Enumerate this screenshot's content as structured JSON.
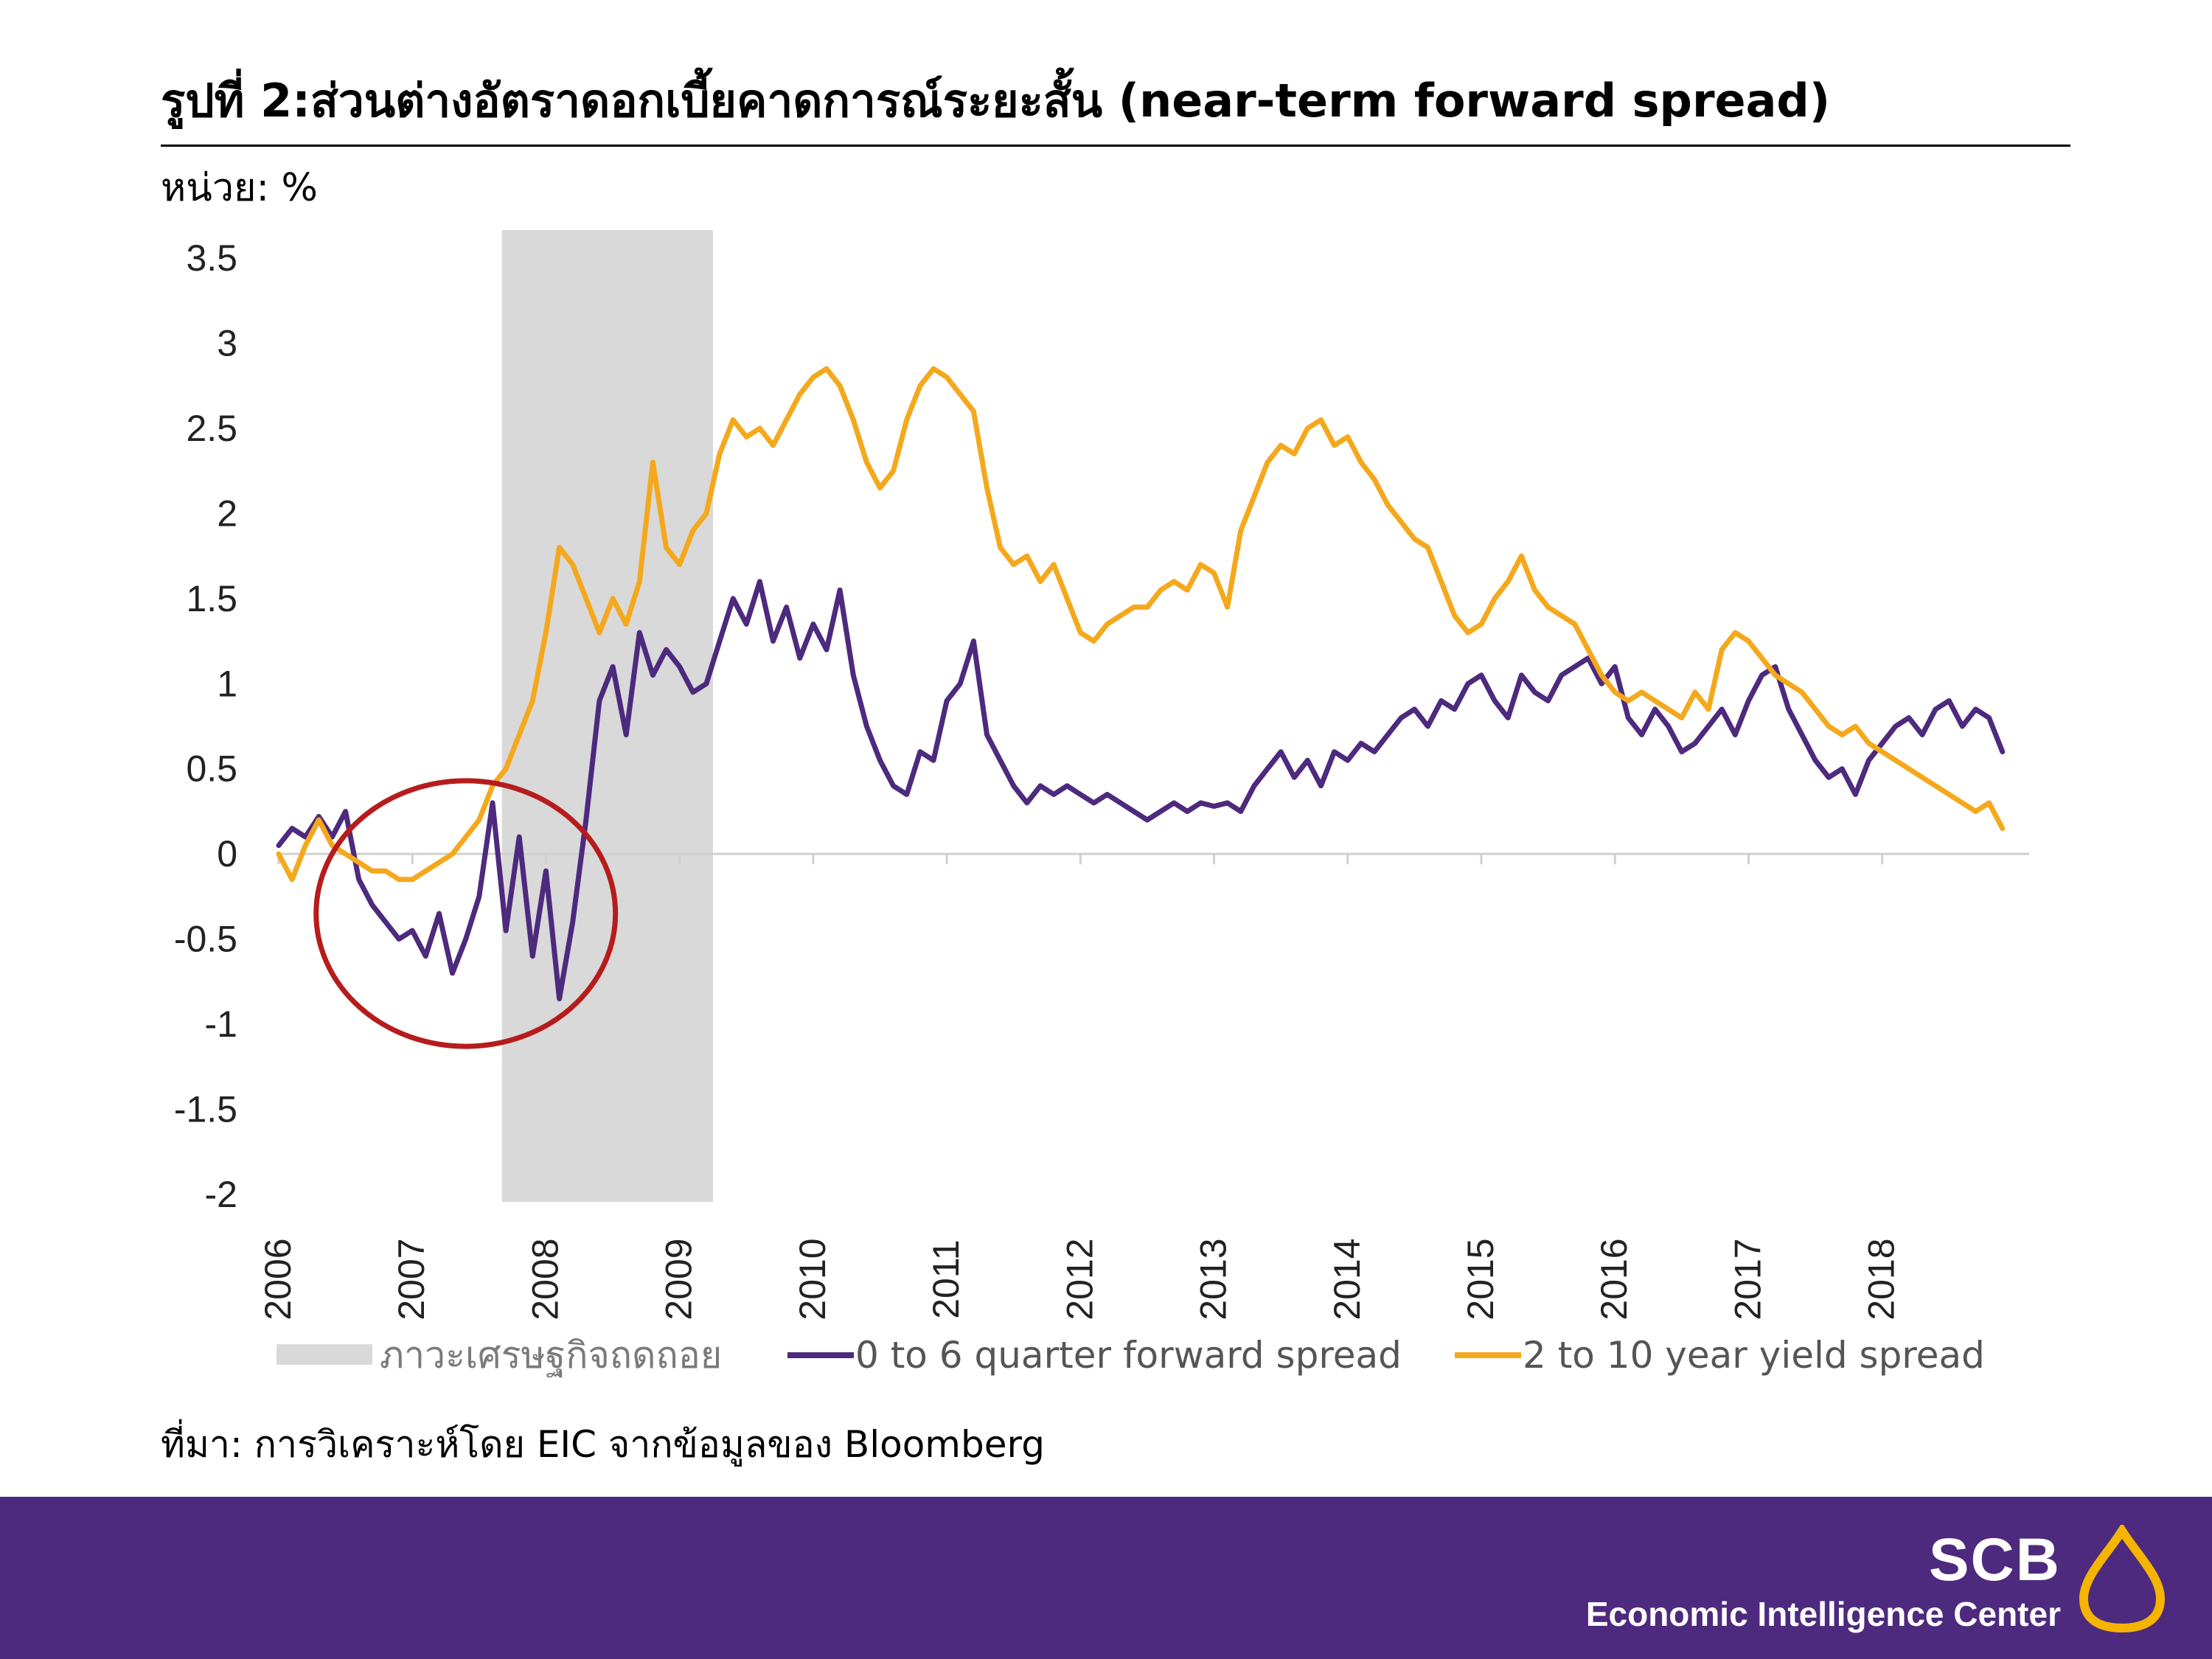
{
  "header": {
    "title": "รูปที่ 2:ส่วนต่างอัตราดอกเบี้ยคาดการณ์ระยะสั้น (near-term forward spread)",
    "unit": "หน่วย: %"
  },
  "footer": {
    "source": "ที่มา: การวิเคราะห์โดย EIC จากข้อมูลของ Bloomberg",
    "brand_name": "SCB",
    "brand_sub": "Economic Intelligence Center",
    "logo_icon": "scb-logo-icon"
  },
  "colors": {
    "forward": "#4d2a7d",
    "yield": "#f5a81c",
    "recession": "#d9d9d9",
    "circle": "#b71c1c",
    "footer": "#4d2a7d"
  },
  "chart_data": {
    "type": "line",
    "title": "รูปที่ 2:ส่วนต่างอัตราดอกเบี้ยคาดการณ์ระยะสั้น (near-term forward spread)",
    "ylabel": "หน่วย: %",
    "xlabel": "",
    "xlim": [
      2006,
      2019.1
    ],
    "ylim": [
      -2,
      3.5
    ],
    "yticks": [
      "3.5",
      "3",
      "2.5",
      "2",
      "1.5",
      "1",
      "0.5",
      "0",
      "-0.5",
      "-1",
      "-1.5",
      "-2"
    ],
    "xticks": [
      "2006",
      "2007",
      "2008",
      "2009",
      "2010",
      "2011",
      "2012",
      "2013",
      "2014",
      "2015",
      "2016",
      "2017",
      "2018"
    ],
    "recession": {
      "label": "ภาวะเศรษฐกิจถดถอย",
      "start": 2007.67,
      "end": 2009.25
    },
    "annotation": {
      "type": "circle",
      "cx": 2007.4,
      "cy": -0.35,
      "rx": 1.12,
      "ry": 0.78
    },
    "series": [
      {
        "name": "0 to 6 quarter forward spread",
        "x": [
          2006.0,
          2006.1,
          2006.2,
          2006.3,
          2006.4,
          2006.5,
          2006.6,
          2006.7,
          2006.8,
          2006.9,
          2007.0,
          2007.1,
          2007.2,
          2007.3,
          2007.4,
          2007.5,
          2007.6,
          2007.7,
          2007.8,
          2007.9,
          2008.0,
          2008.1,
          2008.2,
          2008.3,
          2008.4,
          2008.5,
          2008.6,
          2008.7,
          2008.8,
          2008.9,
          2009.0,
          2009.1,
          2009.2,
          2009.3,
          2009.4,
          2009.5,
          2009.6,
          2009.7,
          2009.8,
          2009.9,
          2010.0,
          2010.1,
          2010.2,
          2010.3,
          2010.4,
          2010.5,
          2010.6,
          2010.7,
          2010.8,
          2010.9,
          2011.0,
          2011.1,
          2011.2,
          2011.3,
          2011.4,
          2011.5,
          2011.6,
          2011.7,
          2011.8,
          2011.9,
          2012.0,
          2012.1,
          2012.2,
          2012.3,
          2012.4,
          2012.5,
          2012.6,
          2012.7,
          2012.8,
          2012.9,
          2013.0,
          2013.1,
          2013.2,
          2013.3,
          2013.4,
          2013.5,
          2013.6,
          2013.7,
          2013.8,
          2013.9,
          2014.0,
          2014.1,
          2014.2,
          2014.3,
          2014.4,
          2014.5,
          2014.6,
          2014.7,
          2014.8,
          2014.9,
          2015.0,
          2015.1,
          2015.2,
          2015.3,
          2015.4,
          2015.5,
          2015.6,
          2015.7,
          2015.8,
          2015.9,
          2016.0,
          2016.1,
          2016.2,
          2016.3,
          2016.4,
          2016.5,
          2016.6,
          2016.7,
          2016.8,
          2016.9,
          2017.0,
          2017.1,
          2017.2,
          2017.3,
          2017.4,
          2017.5,
          2017.6,
          2017.7,
          2017.8,
          2017.9,
          2018.0,
          2018.1,
          2018.2,
          2018.3,
          2018.4,
          2018.5,
          2018.6,
          2018.7,
          2018.8,
          2018.9
        ],
        "values": [
          0.05,
          0.15,
          0.1,
          0.22,
          0.1,
          0.25,
          -0.15,
          -0.3,
          -0.4,
          -0.5,
          -0.45,
          -0.6,
          -0.35,
          -0.7,
          -0.5,
          -0.25,
          0.3,
          -0.45,
          0.1,
          -0.6,
          -0.1,
          -0.85,
          -0.4,
          0.2,
          0.9,
          1.1,
          0.7,
          1.3,
          1.05,
          1.2,
          1.1,
          0.95,
          1.0,
          1.25,
          1.5,
          1.35,
          1.6,
          1.25,
          1.45,
          1.15,
          1.35,
          1.2,
          1.55,
          1.05,
          0.75,
          0.55,
          0.4,
          0.35,
          0.6,
          0.55,
          0.9,
          1.0,
          1.25,
          0.7,
          0.55,
          0.4,
          0.3,
          0.4,
          0.35,
          0.4,
          0.35,
          0.3,
          0.35,
          0.3,
          0.25,
          0.2,
          0.25,
          0.3,
          0.25,
          0.3,
          0.28,
          0.3,
          0.25,
          0.4,
          0.5,
          0.6,
          0.45,
          0.55,
          0.4,
          0.6,
          0.55,
          0.65,
          0.6,
          0.7,
          0.8,
          0.85,
          0.75,
          0.9,
          0.85,
          1.0,
          1.05,
          0.9,
          0.8,
          1.05,
          0.95,
          0.9,
          1.05,
          1.1,
          1.15,
          1.0,
          1.1,
          0.8,
          0.7,
          0.85,
          0.75,
          0.6,
          0.65,
          0.75,
          0.85,
          0.7,
          0.9,
          1.05,
          1.1,
          0.85,
          0.7,
          0.55,
          0.45,
          0.5,
          0.35,
          0.55,
          0.65,
          0.75,
          0.8,
          0.7,
          0.85,
          0.9,
          0.75,
          0.85,
          0.8,
          0.6
        ]
      },
      {
        "name": "2 to 10 year yield spread",
        "x": [
          2006.0,
          2006.1,
          2006.2,
          2006.3,
          2006.4,
          2006.5,
          2006.6,
          2006.7,
          2006.8,
          2006.9,
          2007.0,
          2007.1,
          2007.2,
          2007.3,
          2007.4,
          2007.5,
          2007.6,
          2007.7,
          2007.8,
          2007.9,
          2008.0,
          2008.1,
          2008.2,
          2008.3,
          2008.4,
          2008.5,
          2008.6,
          2008.7,
          2008.8,
          2008.9,
          2009.0,
          2009.1,
          2009.2,
          2009.3,
          2009.4,
          2009.5,
          2009.6,
          2009.7,
          2009.8,
          2009.9,
          2010.0,
          2010.1,
          2010.2,
          2010.3,
          2010.4,
          2010.5,
          2010.6,
          2010.7,
          2010.8,
          2010.9,
          2011.0,
          2011.1,
          2011.2,
          2011.3,
          2011.4,
          2011.5,
          2011.6,
          2011.7,
          2011.8,
          2011.9,
          2012.0,
          2012.1,
          2012.2,
          2012.3,
          2012.4,
          2012.5,
          2012.6,
          2012.7,
          2012.8,
          2012.9,
          2013.0,
          2013.1,
          2013.2,
          2013.3,
          2013.4,
          2013.5,
          2013.6,
          2013.7,
          2013.8,
          2013.9,
          2014.0,
          2014.1,
          2014.2,
          2014.3,
          2014.4,
          2014.5,
          2014.6,
          2014.7,
          2014.8,
          2014.9,
          2015.0,
          2015.1,
          2015.2,
          2015.3,
          2015.4,
          2015.5,
          2015.6,
          2015.7,
          2015.8,
          2015.9,
          2016.0,
          2016.1,
          2016.2,
          2016.3,
          2016.4,
          2016.5,
          2016.6,
          2016.7,
          2016.8,
          2016.9,
          2017.0,
          2017.1,
          2017.2,
          2017.3,
          2017.4,
          2017.5,
          2017.6,
          2017.7,
          2017.8,
          2017.9,
          2018.0,
          2018.1,
          2018.2,
          2018.3,
          2018.4,
          2018.5,
          2018.6,
          2018.7,
          2018.8,
          2018.9
        ],
        "values": [
          0.0,
          -0.15,
          0.05,
          0.2,
          0.05,
          0.0,
          -0.05,
          -0.1,
          -0.1,
          -0.15,
          -0.15,
          -0.1,
          -0.05,
          0.0,
          0.1,
          0.2,
          0.4,
          0.5,
          0.7,
          0.9,
          1.3,
          1.8,
          1.7,
          1.5,
          1.3,
          1.5,
          1.35,
          1.6,
          2.3,
          1.8,
          1.7,
          1.9,
          2.0,
          2.35,
          2.55,
          2.45,
          2.5,
          2.4,
          2.55,
          2.7,
          2.8,
          2.85,
          2.75,
          2.55,
          2.3,
          2.15,
          2.25,
          2.55,
          2.75,
          2.85,
          2.8,
          2.7,
          2.6,
          2.15,
          1.8,
          1.7,
          1.75,
          1.6,
          1.7,
          1.5,
          1.3,
          1.25,
          1.35,
          1.4,
          1.45,
          1.45,
          1.55,
          1.6,
          1.55,
          1.7,
          1.65,
          1.45,
          1.9,
          2.1,
          2.3,
          2.4,
          2.35,
          2.5,
          2.55,
          2.4,
          2.45,
          2.3,
          2.2,
          2.05,
          1.95,
          1.85,
          1.8,
          1.6,
          1.4,
          1.3,
          1.35,
          1.5,
          1.6,
          1.75,
          1.55,
          1.45,
          1.4,
          1.35,
          1.2,
          1.05,
          0.95,
          0.9,
          0.95,
          0.9,
          0.85,
          0.8,
          0.95,
          0.85,
          1.2,
          1.3,
          1.25,
          1.15,
          1.05,
          1.0,
          0.95,
          0.85,
          0.75,
          0.7,
          0.75,
          0.65,
          0.6,
          0.55,
          0.5,
          0.45,
          0.4,
          0.35,
          0.3,
          0.25,
          0.3,
          0.15
        ]
      }
    ]
  }
}
